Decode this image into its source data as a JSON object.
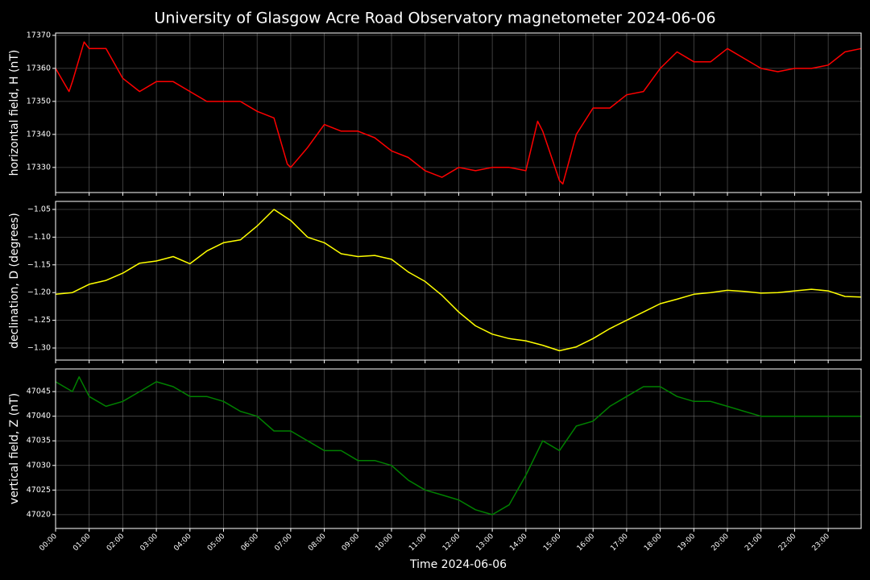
{
  "title": "University of Glasgow Acre Road Observatory magnetometer 2024-06-06",
  "chart_data": [
    {
      "type": "line",
      "ylabel": "horizontal field, H (nT)",
      "grid": true,
      "xlim": [
        0,
        23.98
      ],
      "xticks": [
        0,
        1,
        2,
        3,
        4,
        5,
        6,
        7,
        8,
        9,
        10,
        11,
        12,
        13,
        14,
        15,
        16,
        17,
        18,
        19,
        20,
        21,
        22,
        23
      ],
      "ylim": [
        17322.4,
        17370.7
      ],
      "yticks": [
        17330,
        17340,
        17350,
        17360,
        17370
      ],
      "series": [
        {
          "name": "H",
          "color": "#ff0000",
          "x": [
            0,
            0.4,
            0.5,
            0.85,
            1,
            1.5,
            2,
            2.5,
            3,
            3.5,
            4,
            4.5,
            5,
            5.5,
            6,
            6.5,
            6.9,
            7,
            7.5,
            8,
            8.5,
            9,
            9.5,
            10,
            10.5,
            11,
            11.5,
            12,
            12.5,
            13,
            13.5,
            14,
            14.35,
            14.5,
            15,
            15.1,
            15.5,
            16,
            16.5,
            17,
            17.5,
            18,
            18.5,
            19,
            19.5,
            20,
            20.5,
            21,
            21.5,
            22,
            22.5,
            23,
            23.5,
            23.98
          ],
          "values": [
            17360,
            17353,
            17356,
            17368,
            17366,
            17366,
            17357,
            17353,
            17356,
            17356,
            17353,
            17350,
            17350,
            17350,
            17347,
            17345,
            17331,
            17330,
            17336,
            17343,
            17341,
            17341,
            17339,
            17335,
            17333,
            17329,
            17327,
            17330,
            17329,
            17330,
            17330,
            17329,
            17344,
            17341,
            17326,
            17325,
            17340,
            17348,
            17348,
            17352,
            17353,
            17360,
            17365,
            17362,
            17362,
            17366,
            17363,
            17360,
            17359,
            17360,
            17360,
            17361,
            17365,
            17366
          ]
        }
      ]
    },
    {
      "type": "line",
      "ylabel": "declination, D (degrees)",
      "grid": true,
      "xlim": [
        0,
        23.98
      ],
      "xticks": [
        0,
        1,
        2,
        3,
        4,
        5,
        6,
        7,
        8,
        9,
        10,
        11,
        12,
        13,
        14,
        15,
        16,
        17,
        18,
        19,
        20,
        21,
        22,
        23
      ],
      "ylim": [
        -1.3218,
        -1.0355
      ],
      "yticks": [
        {
          "value": -1.05,
          "label": "−1.05"
        },
        {
          "value": -1.1,
          "label": "−1.10"
        },
        {
          "value": -1.15,
          "label": "−1.15"
        },
        {
          "value": -1.2,
          "label": "−1.20"
        },
        {
          "value": -1.25,
          "label": "−1.25"
        },
        {
          "value": -1.3,
          "label": "−1.30"
        }
      ],
      "series": [
        {
          "name": "D",
          "color": "#ffff00",
          "x": [
            0,
            0.5,
            1,
            1.5,
            2,
            2.5,
            3,
            3.5,
            4,
            4.5,
            5,
            5.5,
            6,
            6.5,
            7,
            7.5,
            8,
            8.5,
            9,
            9.5,
            10,
            10.5,
            11,
            11.5,
            12,
            12.5,
            13,
            13.5,
            14,
            14.5,
            15,
            15.5,
            16,
            16.5,
            17,
            17.5,
            18,
            18.5,
            19,
            19.5,
            20,
            20.5,
            21,
            21.5,
            22,
            22.5,
            23,
            23.5,
            23.98
          ],
          "values": [
            -1.203,
            -1.2,
            -1.185,
            -1.178,
            -1.165,
            -1.147,
            -1.143,
            -1.135,
            -1.148,
            -1.125,
            -1.11,
            -1.105,
            -1.08,
            -1.05,
            -1.07,
            -1.1,
            -1.11,
            -1.13,
            -1.135,
            -1.133,
            -1.14,
            -1.163,
            -1.18,
            -1.205,
            -1.235,
            -1.26,
            -1.275,
            -1.283,
            -1.287,
            -1.295,
            -1.305,
            -1.298,
            -1.283,
            -1.265,
            -1.25,
            -1.235,
            -1.22,
            -1.212,
            -1.203,
            -1.2,
            -1.196,
            -1.198,
            -1.201,
            -1.2,
            -1.197,
            -1.194,
            -1.197,
            -1.207,
            -1.208
          ]
        }
      ]
    },
    {
      "type": "line",
      "ylabel": "vertical field, Z (nT)",
      "xlabel": "Time 2024-06-06",
      "grid": true,
      "xlim": [
        0,
        23.98
      ],
      "xticks": [
        {
          "value": 0,
          "label": "00:00"
        },
        {
          "value": 1,
          "label": "01:00"
        },
        {
          "value": 2,
          "label": "02:00"
        },
        {
          "value": 3,
          "label": "03:00"
        },
        {
          "value": 4,
          "label": "04:00"
        },
        {
          "value": 5,
          "label": "05:00"
        },
        {
          "value": 6,
          "label": "06:00"
        },
        {
          "value": 7,
          "label": "07:00"
        },
        {
          "value": 8,
          "label": "08:00"
        },
        {
          "value": 9,
          "label": "09:00"
        },
        {
          "value": 10,
          "label": "10:00"
        },
        {
          "value": 11,
          "label": "11:00"
        },
        {
          "value": 12,
          "label": "12:00"
        },
        {
          "value": 13,
          "label": "13:00"
        },
        {
          "value": 14,
          "label": "14:00"
        },
        {
          "value": 15,
          "label": "15:00"
        },
        {
          "value": 16,
          "label": "16:00"
        },
        {
          "value": 17,
          "label": "17:00"
        },
        {
          "value": 18,
          "label": "18:00"
        },
        {
          "value": 19,
          "label": "19:00"
        },
        {
          "value": 20,
          "label": "20:00"
        },
        {
          "value": 21,
          "label": "21:00"
        },
        {
          "value": 22,
          "label": "22:00"
        },
        {
          "value": 23,
          "label": "23:00"
        }
      ],
      "ylim": [
        47017.2,
        47049.6
      ],
      "yticks": [
        47020,
        47025,
        47030,
        47035,
        47040,
        47045
      ],
      "series": [
        {
          "name": "Z",
          "color": "#008000",
          "x": [
            0,
            0.5,
            0.7,
            1,
            1.5,
            2,
            2.5,
            3,
            3.5,
            4,
            4.5,
            5,
            5.5,
            6,
            6.5,
            7,
            7.5,
            8,
            8.5,
            9,
            9.5,
            10,
            10.5,
            11,
            11.5,
            12,
            12.5,
            13,
            13.5,
            14,
            14.5,
            15,
            15.5,
            16,
            16.5,
            17,
            17.5,
            18,
            18.5,
            19,
            19.5,
            20,
            20.5,
            21,
            21.5,
            22,
            22.5,
            23,
            23.5,
            23.98
          ],
          "values": [
            47047,
            47045,
            47048,
            47044,
            47042,
            47043,
            47045,
            47047,
            47046,
            47044,
            47044,
            47043,
            47041,
            47040,
            47037,
            47037,
            47035,
            47033,
            47033,
            47031,
            47031,
            47030,
            47027,
            47025,
            47024,
            47023,
            47021,
            47020,
            47022,
            47028,
            47035,
            47033,
            47038,
            47039,
            47042,
            47044,
            47046,
            47046,
            47044,
            47043,
            47043,
            47042,
            47041,
            47040,
            47040,
            47040,
            47040,
            47040,
            47040,
            47040
          ]
        }
      ]
    }
  ]
}
